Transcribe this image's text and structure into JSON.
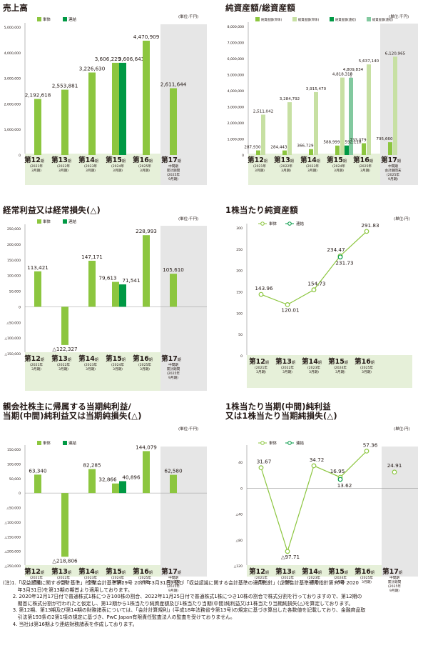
{
  "colors": {
    "single": "#8cc63f",
    "consol": "#009944",
    "light": "#c7e0a3",
    "teal": "#82c99f",
    "axisband": "#e6f0d9",
    "shade": "#e6e6e6",
    "line": "#8cc63f"
  },
  "legend": {
    "single": "単体",
    "consol": "連結",
    "net_single": "純資産額(単体)",
    "total_single": "総資産額(単体)",
    "net_consol": "純資産額(連結)",
    "total_consol": "総資産額(連結)"
  },
  "periods": [
    {
      "num": "第12",
      "ki": "期",
      "sub1": "(2021年",
      "sub2": "3月期)"
    },
    {
      "num": "第13",
      "ki": "期",
      "sub1": "(2022年",
      "sub2": "3月期)"
    },
    {
      "num": "第14",
      "ki": "期",
      "sub1": "(2023年",
      "sub2": "3月期)"
    },
    {
      "num": "第15",
      "ki": "期",
      "sub1": "(2024年",
      "sub2": "3月期)"
    },
    {
      "num": "第16",
      "ki": "期",
      "sub1": "(2025年",
      "sub2": "3月期)"
    }
  ],
  "p17": {
    "num": "第17",
    "ki": "期",
    "a": "中間期",
    "b": "累計期間",
    "c": "(2025年",
    "d": "9月期)",
    "b2": "会計期間末"
  },
  "charts": [
    {
      "id": "c1",
      "title": "売上高",
      "unit": "(単位:千円)",
      "type": "bar",
      "legend": [
        "single",
        "consol"
      ],
      "ticks": [
        "5,000,000",
        "4,000,000",
        "3,000,000",
        "2,000,000",
        "1,000,000",
        "0"
      ],
      "tick_values": [
        5000000,
        4000000,
        3000000,
        2000000,
        1000000,
        0
      ],
      "ylim": [
        0,
        5000000
      ],
      "series": [
        {
          "name": "単体",
          "values": [
            2192618,
            2553881,
            3226630,
            3606229,
            4470909,
            2611644
          ]
        },
        {
          "name": "連結",
          "values": [
            null,
            null,
            null,
            3606643,
            null,
            null
          ]
        }
      ],
      "labels": [
        [
          "2,192,618"
        ],
        [
          "2,553,881"
        ],
        [
          "3,226,630"
        ],
        [
          "3,606,229",
          "3,606,643"
        ],
        [
          "4,470,909"
        ],
        [
          "2,611,644"
        ]
      ]
    },
    {
      "id": "c2",
      "title": "純資産額/総資産額",
      "unit": "(単位:千円)",
      "type": "bar4",
      "legend": [
        "net_single",
        "total_single",
        "net_consol",
        "total_consol"
      ],
      "ticks": [
        "8,000,000",
        "7,000,000",
        "6,000,000",
        "5,000,000",
        "4,000,000",
        "3,000,000",
        "2,000,000",
        "1,000,000",
        "0"
      ],
      "tick_values": [
        8000000,
        7000000,
        6000000,
        5000000,
        4000000,
        3000000,
        2000000,
        1000000,
        0
      ],
      "ylim": [
        0,
        8000000
      ],
      "series": [
        {
          "name": "純資産額(単体)",
          "values": [
            287930,
            284443,
            366729,
            588999,
            733079,
            795660
          ]
        },
        {
          "name": "総資産額(単体)",
          "values": [
            2511042,
            3284792,
            3915470,
            4818318,
            5637140,
            6120965
          ]
        },
        {
          "name": "純資産額(連結)",
          "values": [
            null,
            null,
            null,
            592118,
            null,
            null
          ]
        },
        {
          "name": "総資産額(連結)",
          "values": [
            null,
            null,
            null,
            4809834,
            null,
            null
          ]
        }
      ],
      "labels": {
        "net": [
          "287,930",
          "284,443",
          "366,729",
          "588,999",
          "733,079",
          "795,660"
        ],
        "total": [
          "2,511,042",
          "3,284,792",
          "3,915,470",
          "4,818,318",
          "5,637,140",
          "6,120,965"
        ],
        "net_c": "592,118",
        "total_c": "4,809,834"
      }
    },
    {
      "id": "c3",
      "title": "経常利益又は経常損失(△)",
      "unit": "(単位:千円)",
      "type": "bar",
      "legend": [
        "single",
        "consol"
      ],
      "ticks": [
        "250,000",
        "200,000",
        "150,000",
        "100,000",
        "50,000",
        "0",
        "△50,000",
        "△100,000",
        "△150,000"
      ],
      "tick_values": [
        250000,
        200000,
        150000,
        100000,
        50000,
        0,
        -50000,
        -100000,
        -150000
      ],
      "ylim": [
        -150000,
        250000
      ],
      "series": [
        {
          "name": "単体",
          "values": [
            113421,
            -122327,
            147171,
            79613,
            228993,
            105610
          ]
        },
        {
          "name": "連結",
          "values": [
            null,
            null,
            null,
            71541,
            null,
            null
          ]
        }
      ],
      "labels": [
        [
          "113,421"
        ],
        [
          "△122,327"
        ],
        [
          "147,171"
        ],
        [
          "79,613",
          "71,541"
        ],
        [
          "228,993"
        ],
        [
          "105,610"
        ]
      ]
    },
    {
      "id": "c4",
      "title": "1株当たり純資産額",
      "unit": "(単位:円)",
      "type": "line",
      "legend": [
        "single",
        "consol"
      ],
      "ticks": [
        "300",
        "250",
        "200",
        "150",
        "100",
        "50",
        "0"
      ],
      "tick_values": [
        300,
        250,
        200,
        150,
        100,
        50,
        0
      ],
      "ylim": [
        0,
        300
      ],
      "series": [
        {
          "name": "単体",
          "values": [
            143.96,
            120.01,
            154.73,
            234.47,
            291.83
          ]
        },
        {
          "name": "連結",
          "values": [
            null,
            null,
            null,
            231.73,
            null
          ]
        }
      ],
      "labels": [
        "143.96",
        "120.01",
        "154.73",
        "234.47",
        "291.83"
      ],
      "label_c": "231.73"
    },
    {
      "id": "c5",
      "title": "親会社株主に帰属する当期純利益/\n当期(中間)純利益又は当期純損失(△)",
      "unit": "(単位:千円)",
      "type": "bar",
      "legend": [
        "single",
        "consol"
      ],
      "ticks": [
        "150,000",
        "100,000",
        "50,000",
        "0",
        "△50,000",
        "△100,000",
        "△150,000",
        "△200,000",
        "△250,000"
      ],
      "tick_values": [
        150000,
        100000,
        50000,
        0,
        -50000,
        -100000,
        -150000,
        -200000,
        -250000
      ],
      "ylim": [
        -250000,
        150000
      ],
      "series": [
        {
          "name": "単体",
          "values": [
            63340,
            -218806,
            82285,
            32866,
            144079,
            62580
          ]
        },
        {
          "name": "連結",
          "values": [
            null,
            null,
            null,
            40896,
            null,
            null
          ]
        }
      ],
      "labels": [
        [
          "63,340"
        ],
        [
          "△218,806"
        ],
        [
          "82,285"
        ],
        [
          "32,866",
          "40,896"
        ],
        [
          "144,079"
        ],
        [
          "62,580"
        ]
      ]
    },
    {
      "id": "c6",
      "title": "1株当たり当期(中間)純利益\n又は1株当たり当期純損失(△)",
      "unit": "(単位:円)",
      "type": "line",
      "legend": [
        "single",
        "consol"
      ],
      "ticks": [
        "40",
        "0",
        "△40",
        "△80",
        "△120"
      ],
      "tick_values": [
        40,
        0,
        -40,
        -80,
        -120
      ],
      "ylim": [
        -120,
        60
      ],
      "series": [
        {
          "name": "単体",
          "values": [
            31.67,
            -97.71,
            34.72,
            16.95,
            57.36,
            24.91
          ]
        },
        {
          "name": "連結",
          "values": [
            null,
            null,
            null,
            13.62,
            null,
            null
          ]
        }
      ],
      "labels": [
        "31.67",
        "△97.71",
        "34.72",
        "16.95",
        "57.36",
        "24.91"
      ],
      "label_c": "13.62"
    }
  ],
  "notes": [
    "(注)1.「収益認識に関する会計基準」(企業会計基準第29号 2020年3月31日) 及び「収益認識に関する会計基準の適用指針」(企業会計基準適用指針第30号 2020",
    "　　　年3月31日)を第13期の期首より適用しております。",
    "　　2. 2020年12月17日付で普通株式1株につき100株の割合、2022年11月25日付で普通株式1株につき10株の割合で株式分割を行っておりますので、第12期の",
    "　　　期首に株式分割が行われたと仮定し、第12期から1株当たり純資産額及び1株当たり当期(中間)純利益又は1株当たり当期純損失(△)を算定しております。",
    "　　3. 第12期、第13期及び第14期の財務諸表については、「会計計算規則」(平成18年法務省令第13号)の規定に基づき算出した各数値を記載しており、金融商品取",
    "　　　引法第193条の2第1項の規定に基づき、PwC Japan有限責任監査法人の監査を受けておりません。",
    "　　4. 当社は第16期より連結財務諸表を作成しております。"
  ]
}
